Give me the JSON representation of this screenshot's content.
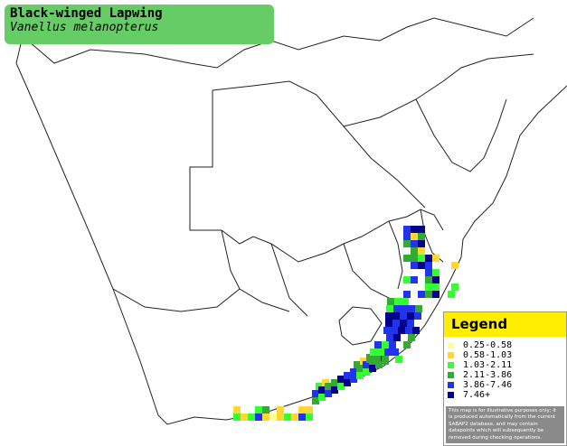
{
  "header": {
    "title": "Black-winged Lapwing",
    "subtitle": "Vanellus melanopterus"
  },
  "legend": {
    "title": "Legend",
    "entries": [
      {
        "label": "0.25-0.58",
        "color": "#ffff99"
      },
      {
        "label": "0.58-1.03",
        "color": "#ffd633"
      },
      {
        "label": "1.03-2.11",
        "color": "#33ff33"
      },
      {
        "label": "2.11-3.86",
        "color": "#33aa33"
      },
      {
        "label": "3.86-7.46",
        "color": "#2233ee"
      },
      {
        "label": "7.46+",
        "color": "#000088"
      }
    ],
    "disclaimer": "This map is for illustrative purposes only; it is produced automatically from the current SABAP2 database, and may contain datapoints which will subsequently be removed during checking operations."
  }
}
